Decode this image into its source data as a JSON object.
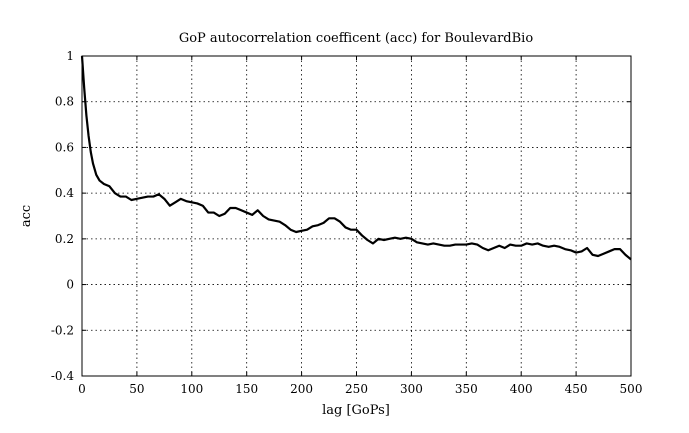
{
  "chart_data": {
    "type": "line",
    "title": "GoP autocorrelation coefficent (acc) for BoulevardBio",
    "xlabel": "lag [GoPs]",
    "ylabel": "acc",
    "xlim": [
      0,
      500
    ],
    "ylim": [
      -0.4,
      1
    ],
    "xticks": [
      "0",
      "50",
      "100",
      "150",
      "200",
      "250",
      "300",
      "350",
      "400",
      "450",
      "500"
    ],
    "yticks": [
      "-0.4",
      "-0.2",
      "0",
      "0.2",
      "0.4",
      "0.6",
      "0.8",
      "1"
    ],
    "grid": true,
    "series": [
      {
        "color": "#000000",
        "x": [
          0,
          2,
          4,
          6,
          8,
          10,
          13,
          16,
          20,
          25,
          30,
          35,
          40,
          45,
          50,
          55,
          60,
          65,
          70,
          75,
          80,
          85,
          90,
          95,
          100,
          105,
          110,
          115,
          120,
          125,
          130,
          135,
          140,
          145,
          150,
          155,
          160,
          165,
          170,
          175,
          180,
          185,
          190,
          195,
          200,
          205,
          210,
          215,
          220,
          225,
          230,
          235,
          240,
          245,
          250,
          255,
          260,
          265,
          270,
          275,
          280,
          285,
          290,
          295,
          300,
          305,
          310,
          315,
          320,
          325,
          330,
          335,
          340,
          345,
          350,
          355,
          360,
          365,
          370,
          375,
          380,
          385,
          390,
          395,
          400,
          405,
          410,
          415,
          420,
          425,
          430,
          435,
          440,
          445,
          450,
          455,
          460,
          465,
          470,
          475,
          480,
          485,
          490,
          495,
          500
        ],
        "y": [
          1.0,
          0.86,
          0.74,
          0.65,
          0.58,
          0.53,
          0.48,
          0.455,
          0.44,
          0.43,
          0.4,
          0.385,
          0.385,
          0.37,
          0.375,
          0.38,
          0.385,
          0.385,
          0.395,
          0.375,
          0.345,
          0.36,
          0.375,
          0.365,
          0.36,
          0.355,
          0.345,
          0.315,
          0.315,
          0.3,
          0.31,
          0.335,
          0.335,
          0.325,
          0.315,
          0.305,
          0.325,
          0.3,
          0.285,
          0.28,
          0.275,
          0.26,
          0.24,
          0.23,
          0.235,
          0.24,
          0.255,
          0.26,
          0.27,
          0.29,
          0.29,
          0.275,
          0.25,
          0.24,
          0.24,
          0.215,
          0.195,
          0.18,
          0.2,
          0.195,
          0.2,
          0.205,
          0.2,
          0.205,
          0.2,
          0.185,
          0.18,
          0.175,
          0.18,
          0.175,
          0.17,
          0.17,
          0.175,
          0.175,
          0.175,
          0.18,
          0.175,
          0.16,
          0.15,
          0.16,
          0.17,
          0.16,
          0.175,
          0.17,
          0.17,
          0.18,
          0.175,
          0.18,
          0.17,
          0.165,
          0.17,
          0.165,
          0.155,
          0.15,
          0.14,
          0.145,
          0.16,
          0.13,
          0.125,
          0.135,
          0.145,
          0.155,
          0.155,
          0.13,
          0.11
        ]
      }
    ]
  }
}
